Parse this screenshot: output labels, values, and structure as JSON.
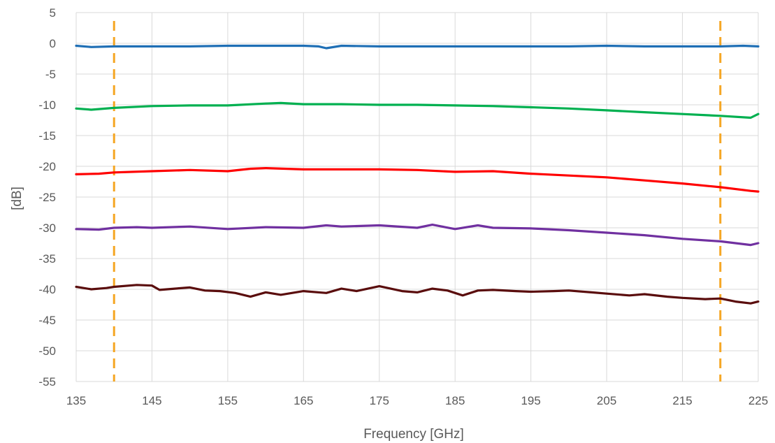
{
  "chart_data": {
    "type": "line",
    "title": "",
    "xlabel": "Frequency [GHz]",
    "ylabel": "[dB]",
    "xlim": [
      135,
      225
    ],
    "ylim": [
      -55,
      5
    ],
    "x_ticks": [
      135,
      145,
      155,
      165,
      175,
      185,
      195,
      205,
      215,
      225
    ],
    "y_ticks": [
      5,
      0,
      -5,
      -10,
      -15,
      -20,
      -25,
      -30,
      -35,
      -40,
      -45,
      -50,
      -55
    ],
    "grid": true,
    "legend": "none",
    "vertical_markers": [
      {
        "x": 140,
        "color": "#f5a623",
        "style": "dashed"
      },
      {
        "x": 220,
        "color": "#f5a623",
        "style": "dashed"
      }
    ],
    "series": [
      {
        "color": "#1f6fb5",
        "x": [
          135,
          137,
          140,
          145,
          150,
          155,
          160,
          165,
          167,
          168,
          170,
          175,
          180,
          185,
          190,
          195,
          200,
          205,
          210,
          215,
          220,
          223,
          225
        ],
        "y": [
          -0.4,
          -0.6,
          -0.5,
          -0.5,
          -0.5,
          -0.4,
          -0.4,
          -0.4,
          -0.5,
          -0.8,
          -0.4,
          -0.5,
          -0.5,
          -0.5,
          -0.5,
          -0.5,
          -0.5,
          -0.4,
          -0.5,
          -0.5,
          -0.5,
          -0.4,
          -0.5
        ]
      },
      {
        "color": "#00b050",
        "x": [
          135,
          137,
          140,
          145,
          150,
          155,
          160,
          162,
          165,
          170,
          175,
          180,
          185,
          190,
          195,
          200,
          205,
          210,
          215,
          220,
          224,
          225
        ],
        "y": [
          -10.6,
          -10.8,
          -10.5,
          -10.2,
          -10.1,
          -10.1,
          -9.8,
          -9.7,
          -9.9,
          -9.9,
          -10.0,
          -10.0,
          -10.1,
          -10.2,
          -10.4,
          -10.6,
          -10.9,
          -11.2,
          -11.5,
          -11.8,
          -12.1,
          -11.5
        ]
      },
      {
        "color": "#ff0000",
        "x": [
          135,
          138,
          140,
          145,
          150,
          155,
          158,
          160,
          165,
          170,
          175,
          180,
          185,
          190,
          195,
          200,
          205,
          210,
          215,
          220,
          224,
          225
        ],
        "y": [
          -21.3,
          -21.2,
          -21.0,
          -20.8,
          -20.6,
          -20.8,
          -20.4,
          -20.3,
          -20.5,
          -20.5,
          -20.5,
          -20.6,
          -20.9,
          -20.8,
          -21.2,
          -21.5,
          -21.8,
          -22.3,
          -22.8,
          -23.4,
          -24.0,
          -24.1
        ]
      },
      {
        "color": "#7030a0",
        "x": [
          135,
          138,
          140,
          143,
          145,
          150,
          155,
          160,
          165,
          168,
          170,
          175,
          180,
          182,
          185,
          188,
          190,
          195,
          200,
          205,
          210,
          215,
          220,
          224,
          225
        ],
        "y": [
          -30.2,
          -30.3,
          -30.0,
          -29.9,
          -30.0,
          -29.8,
          -30.2,
          -29.9,
          -30.0,
          -29.6,
          -29.8,
          -29.6,
          -30.0,
          -29.5,
          -30.2,
          -29.6,
          -30.0,
          -30.1,
          -30.4,
          -30.8,
          -31.2,
          -31.8,
          -32.2,
          -32.8,
          -32.5
        ]
      },
      {
        "color": "#5a0d0d",
        "x": [
          135,
          137,
          139,
          140,
          143,
          145,
          146,
          148,
          150,
          152,
          154,
          156,
          158,
          160,
          162,
          165,
          168,
          170,
          172,
          175,
          178,
          180,
          182,
          184,
          186,
          188,
          190,
          193,
          195,
          198,
          200,
          203,
          205,
          208,
          210,
          213,
          215,
          218,
          220,
          222,
          224,
          225
        ],
        "y": [
          -39.6,
          -40.0,
          -39.8,
          -39.6,
          -39.3,
          -39.4,
          -40.1,
          -39.9,
          -39.7,
          -40.2,
          -40.3,
          -40.6,
          -41.2,
          -40.5,
          -40.9,
          -40.3,
          -40.6,
          -39.9,
          -40.3,
          -39.5,
          -40.3,
          -40.5,
          -39.9,
          -40.2,
          -41.0,
          -40.2,
          -40.1,
          -40.3,
          -40.4,
          -40.3,
          -40.2,
          -40.5,
          -40.7,
          -41.0,
          -40.8,
          -41.2,
          -41.4,
          -41.6,
          -41.5,
          -42.0,
          -42.3,
          -42.0
        ]
      }
    ]
  }
}
